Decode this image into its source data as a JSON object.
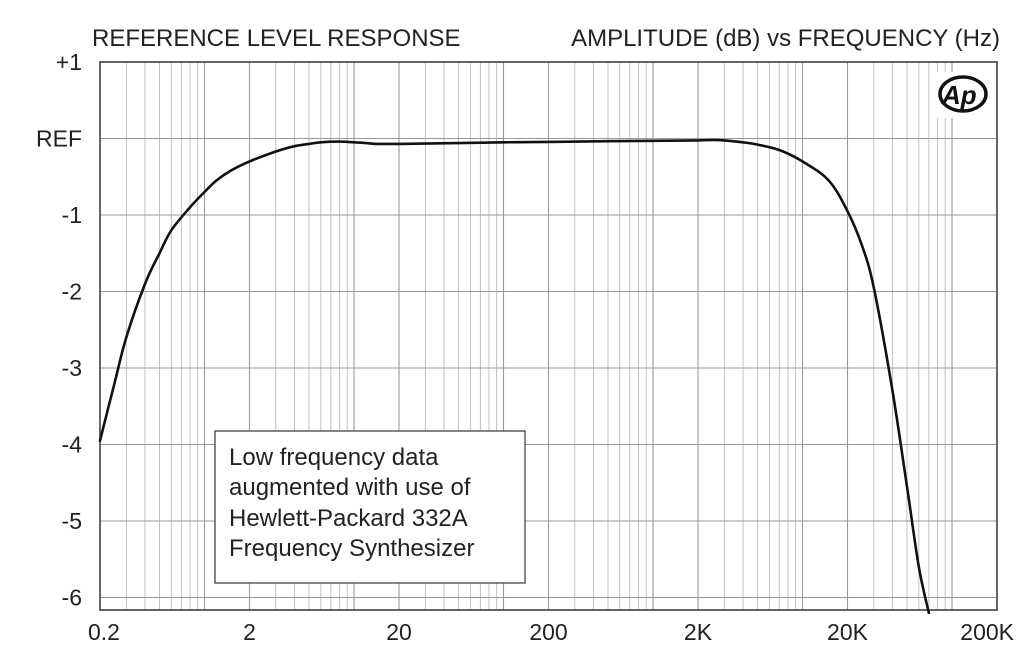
{
  "chart_data": {
    "type": "line",
    "title": "REFERENCE LEVEL RESPONSE",
    "subtitle": "AMPLITUDE (dB) vs FREQUENCY (Hz)",
    "xlabel": "",
    "ylabel": "",
    "x_scale": "log",
    "xlim": [
      0.2,
      200000
    ],
    "ylim": [
      -6.2,
      1
    ],
    "grid": true,
    "legend": "none",
    "x_ticks": [
      {
        "value": 0.2,
        "label": "0.2"
      },
      {
        "value": 2,
        "label": "2"
      },
      {
        "value": 20,
        "label": "20"
      },
      {
        "value": 200,
        "label": "200"
      },
      {
        "value": 2000,
        "label": "2K"
      },
      {
        "value": 20000,
        "label": "20K"
      },
      {
        "value": 200000,
        "label": "200K"
      }
    ],
    "y_ticks": [
      {
        "value": 1,
        "label": "+1"
      },
      {
        "value": 0,
        "label": "REF"
      },
      {
        "value": -1,
        "label": "-1"
      },
      {
        "value": -2,
        "label": "-2"
      },
      {
        "value": -3,
        "label": "-3"
      },
      {
        "value": -4,
        "label": "-4"
      },
      {
        "value": -5,
        "label": "-5"
      },
      {
        "value": -6,
        "label": "-6"
      }
    ],
    "series": [
      {
        "x": [
          0.2,
          0.25,
          0.3,
          0.4,
          0.5,
          0.6,
          0.8,
          1.0,
          1.2,
          1.5,
          2,
          3,
          4,
          5,
          6,
          8,
          10,
          12,
          14,
          20,
          50,
          100,
          200,
          500,
          1000,
          2000,
          2500,
          3000,
          4000,
          5000,
          7000,
          10000,
          15000,
          20000,
          25000,
          30000,
          40000,
          50000,
          60000,
          70000
        ],
        "y": [
          -3.95,
          -3.2,
          -2.6,
          -1.9,
          -1.5,
          -1.2,
          -0.9,
          -0.7,
          -0.55,
          -0.42,
          -0.3,
          -0.17,
          -0.1,
          -0.07,
          -0.05,
          -0.04,
          -0.05,
          -0.06,
          -0.07,
          -0.07,
          -0.06,
          -0.05,
          -0.045,
          -0.035,
          -0.03,
          -0.025,
          -0.02,
          -0.025,
          -0.05,
          -0.08,
          -0.15,
          -0.3,
          -0.55,
          -0.95,
          -1.4,
          -1.95,
          -3.3,
          -4.55,
          -5.6,
          -6.2
        ]
      }
    ],
    "annotations": [
      "Low frequency data",
      "augmented with use of",
      "Hewlett-Packard 332A",
      "Frequency Synthesizer"
    ],
    "logo": "Ap"
  }
}
